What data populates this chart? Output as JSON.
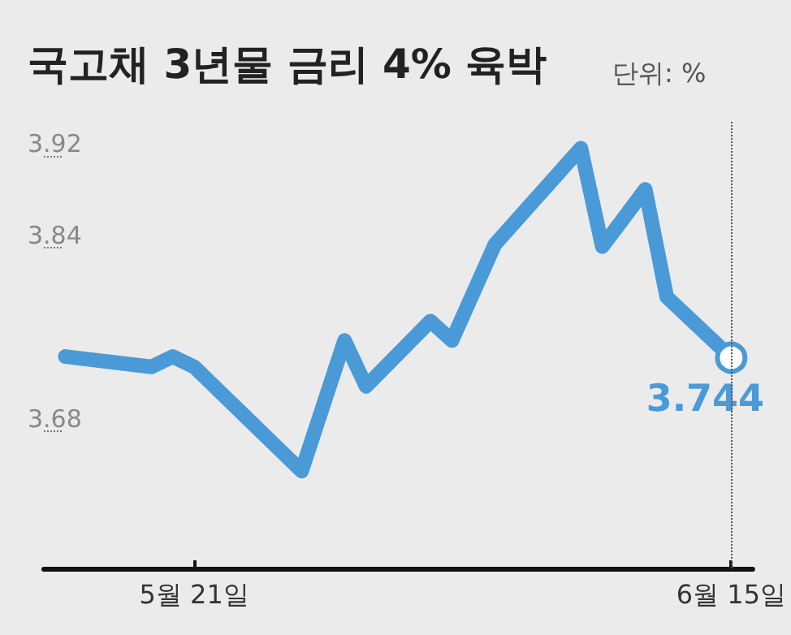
{
  "chart_data": {
    "type": "line",
    "title": "국고채 3년물 금리 4% 육박",
    "subtitle": "단위: %",
    "x": [
      "--05-15",
      "--05-19",
      "--05-20",
      "--05-21",
      "--05-26",
      "--05-28",
      "--05-29",
      "--06-01",
      "--06-02",
      "--06-04",
      "--06-08",
      "--06-09",
      "--06-11",
      "--06-12",
      "--06-15"
    ],
    "series": [
      {
        "color": "#4a9ad8",
        "values": [
          3.745,
          3.736,
          3.745,
          3.736,
          3.645,
          3.759,
          3.719,
          3.776,
          3.759,
          3.843,
          3.927,
          3.841,
          3.891,
          3.797,
          3.744
        ],
        "value_labels": [
          null,
          null,
          null,
          null,
          null,
          null,
          null,
          null,
          null,
          null,
          null,
          null,
          null,
          null,
          "3.744"
        ]
      }
    ],
    "xlim": [
      "--05-14",
      "--06-16"
    ],
    "xticks": [
      {
        "value": "--05-21",
        "label": "5월 21일"
      },
      {
        "value": "--06-15",
        "label": "6월 15일"
      }
    ],
    "ylim": [
      3.56,
      3.95
    ],
    "yticks": [
      3.68,
      3.84,
      3.92
    ],
    "ref_lines": [
      {
        "axis": "x",
        "value": "--06-15",
        "label": null,
        "line_style": "dotted",
        "color": "#555555"
      }
    ],
    "grid": false,
    "line_style": "solid"
  }
}
